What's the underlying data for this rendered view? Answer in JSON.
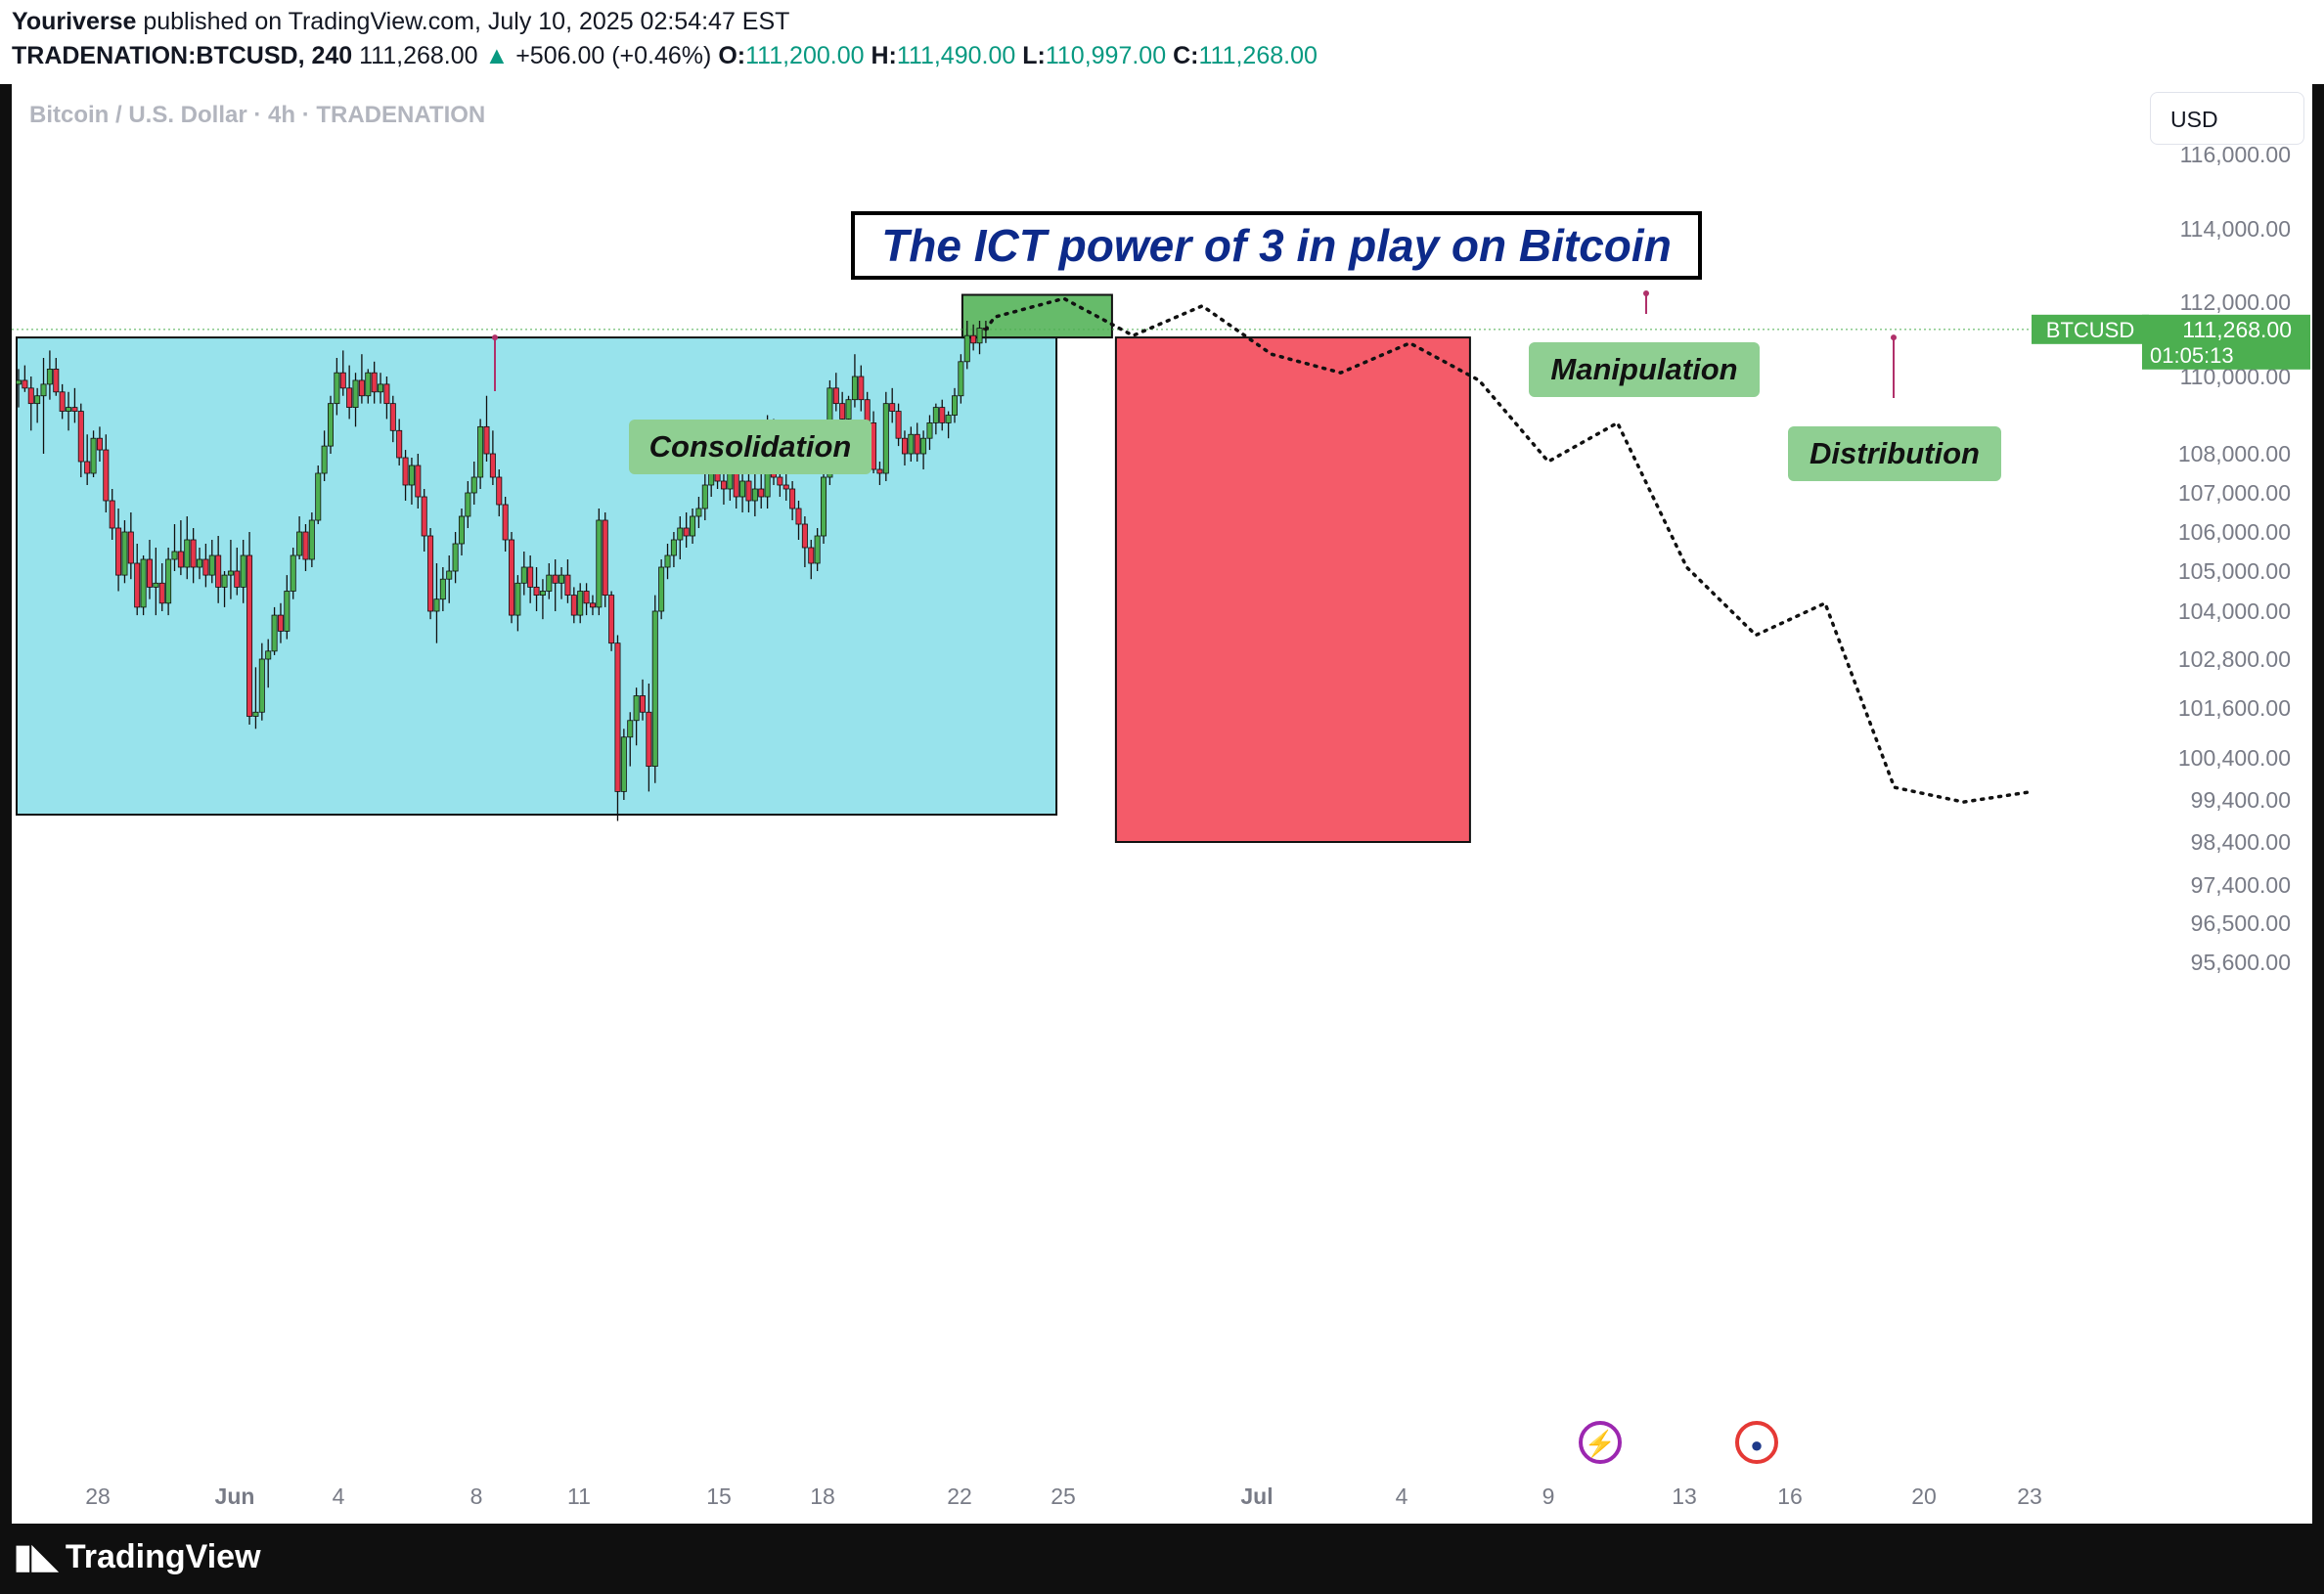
{
  "header": {
    "author": "Youriverse",
    "published_text": " published on TradingView.com, July 10, 2025 02:54:47 EST",
    "symbol": "TRADENATION:BTCUSD, 240",
    "last": "111,268.00",
    "change": "+506.00 (+0.46%)",
    "o_label": "O:",
    "o_value": "111,200.00",
    "h_label": "H:",
    "h_value": "111,490.00",
    "l_label": "L:",
    "l_value": "110,997.00",
    "c_label": "C:",
    "c_value": "111,268.00"
  },
  "chart_header": {
    "symbol_desc": "Bitcoin / U.S. Dollar · 4h · TRADENATION",
    "currency_button": "USD"
  },
  "annotations": {
    "title": "The ICT power of 3 in play on Bitcoin",
    "consolidation": "Consolidation",
    "manipulation": "Manipulation",
    "distribution": "Distribution"
  },
  "price_tag": {
    "symbol": "BTCUSD",
    "price": "111,268.00",
    "countdown": "01:05:13"
  },
  "footer": {
    "brand": "TradingView"
  },
  "colors": {
    "up": "#4caf50",
    "down": "#e5364b",
    "consolidation_box": "#98e3ec",
    "manipulation_box": "#66bb6a",
    "distribution_box": "#f45b69",
    "title_text": "#0d2a8a"
  },
  "chart_data": {
    "type": "candlestick",
    "y_axis_labels": [
      "116,000.00",
      "114,000.00",
      "112,000.00",
      "110,000.00",
      "108,000.00",
      "107,000.00",
      "106,000.00",
      "105,000.00",
      "104,000.00",
      "102,800.00",
      "101,600.00",
      "100,400.00",
      "99,400.00",
      "98,400.00",
      "97,400.00",
      "96,500.00",
      "95,600.00"
    ],
    "x_axis_labels": [
      "28",
      "Jun",
      "4",
      "8",
      "11",
      "15",
      "18",
      "22",
      "25",
      "Jul",
      "4",
      "9",
      "13",
      "16",
      "20",
      "23"
    ],
    "candles": [
      [
        109800,
        110200,
        109200,
        109900
      ],
      [
        109900,
        110300,
        109600,
        109700
      ],
      [
        109700,
        110000,
        108600,
        109300
      ],
      [
        109300,
        109700,
        108800,
        109500
      ],
      [
        109500,
        110500,
        108000,
        109800
      ],
      [
        109800,
        110700,
        109400,
        110200
      ],
      [
        110200,
        110500,
        109500,
        109600
      ],
      [
        109600,
        109800,
        108900,
        109100
      ],
      [
        109100,
        109600,
        108600,
        109200
      ],
      [
        109200,
        109700,
        108800,
        109100
      ],
      [
        109100,
        109300,
        107400,
        107800
      ],
      [
        107800,
        108500,
        107200,
        107500
      ],
      [
        107500,
        108600,
        107400,
        108400
      ],
      [
        108400,
        108700,
        107800,
        108100
      ],
      [
        108100,
        108500,
        106500,
        106800
      ],
      [
        106800,
        107100,
        105800,
        106100
      ],
      [
        106100,
        106600,
        104500,
        104900
      ],
      [
        104900,
        106300,
        104700,
        106000
      ],
      [
        106000,
        106500,
        104800,
        105200
      ],
      [
        105200,
        105700,
        103900,
        104100
      ],
      [
        104100,
        105400,
        103900,
        105300
      ],
      [
        105300,
        105800,
        104300,
        104600
      ],
      [
        104600,
        105600,
        103900,
        104700
      ],
      [
        104700,
        105200,
        104000,
        104200
      ],
      [
        104200,
        105600,
        103900,
        105300
      ],
      [
        105300,
        106200,
        105000,
        105500
      ],
      [
        105500,
        106300,
        104900,
        105100
      ],
      [
        105100,
        106400,
        104800,
        105800
      ],
      [
        105800,
        106100,
        104700,
        105100
      ],
      [
        105100,
        105600,
        104800,
        105300
      ],
      [
        105300,
        105700,
        104600,
        104900
      ],
      [
        104900,
        105800,
        104700,
        105400
      ],
      [
        105400,
        105900,
        104200,
        104600
      ],
      [
        104600,
        105000,
        104100,
        104900
      ],
      [
        104900,
        105800,
        104300,
        105000
      ],
      [
        105000,
        105600,
        104400,
        104600
      ],
      [
        104600,
        105800,
        104200,
        105400
      ],
      [
        105400,
        106000,
        101200,
        101400
      ],
      [
        101400,
        102600,
        101100,
        101500
      ],
      [
        101500,
        103200,
        101300,
        102800
      ],
      [
        102800,
        103300,
        102100,
        103000
      ],
      [
        103000,
        104100,
        102900,
        103900
      ],
      [
        103900,
        104200,
        103200,
        103500
      ],
      [
        103500,
        104900,
        103300,
        104500
      ],
      [
        104500,
        105600,
        104300,
        105400
      ],
      [
        105400,
        106400,
        105300,
        106000
      ],
      [
        106000,
        106200,
        105000,
        105300
      ],
      [
        105300,
        106500,
        105100,
        106300
      ],
      [
        106300,
        107700,
        106200,
        107500
      ],
      [
        107500,
        108600,
        107300,
        108200
      ],
      [
        108200,
        109500,
        108000,
        109300
      ],
      [
        109300,
        110500,
        109000,
        110100
      ],
      [
        110100,
        110700,
        109500,
        109700
      ],
      [
        109700,
        110300,
        108900,
        109200
      ],
      [
        109200,
        110100,
        108700,
        109900
      ],
      [
        109900,
        110600,
        109300,
        109500
      ],
      [
        109500,
        110200,
        109300,
        110100
      ],
      [
        110100,
        110400,
        109300,
        109600
      ],
      [
        109600,
        110100,
        109300,
        109800
      ],
      [
        109800,
        110000,
        108900,
        109300
      ],
      [
        109300,
        109500,
        108300,
        108600
      ],
      [
        108600,
        108900,
        107700,
        107900
      ],
      [
        107900,
        108100,
        106800,
        107200
      ],
      [
        107200,
        107900,
        106700,
        107700
      ],
      [
        107700,
        108000,
        106600,
        106900
      ],
      [
        106900,
        107100,
        105500,
        105900
      ],
      [
        105900,
        106100,
        103800,
        104000
      ],
      [
        104000,
        105200,
        103200,
        104300
      ],
      [
        104300,
        105100,
        104000,
        104800
      ],
      [
        104800,
        105400,
        104200,
        105000
      ],
      [
        105000,
        106000,
        104700,
        105700
      ],
      [
        105700,
        106600,
        105400,
        106400
      ],
      [
        106400,
        107300,
        106100,
        107000
      ],
      [
        107000,
        107800,
        106700,
        107400
      ],
      [
        107400,
        108900,
        107100,
        108700
      ],
      [
        108700,
        109500,
        107800,
        108000
      ],
      [
        108000,
        108600,
        107200,
        107400
      ],
      [
        107400,
        107600,
        106400,
        106700
      ],
      [
        106700,
        106900,
        105500,
        105800
      ],
      [
        105800,
        106000,
        103700,
        103900
      ],
      [
        103900,
        104900,
        103500,
        104700
      ],
      [
        104700,
        105500,
        104400,
        105100
      ],
      [
        105100,
        105400,
        104200,
        104600
      ],
      [
        104600,
        105100,
        104000,
        104400
      ],
      [
        104400,
        104800,
        103800,
        104500
      ],
      [
        104500,
        105200,
        104300,
        104900
      ],
      [
        104900,
        105300,
        104000,
        104700
      ],
      [
        104700,
        105100,
        104300,
        104900
      ],
      [
        104900,
        105300,
        104200,
        104400
      ],
      [
        104400,
        104600,
        103700,
        103900
      ],
      [
        103900,
        104700,
        103700,
        104500
      ],
      [
        104500,
        104700,
        103900,
        104200
      ],
      [
        104200,
        104400,
        103900,
        104100
      ],
      [
        104100,
        106600,
        103900,
        106300
      ],
      [
        106300,
        106500,
        104100,
        104400
      ],
      [
        104400,
        104500,
        103000,
        103200
      ],
      [
        103200,
        103400,
        98900,
        99600
      ],
      [
        99600,
        101100,
        99400,
        100900
      ],
      [
        100900,
        101500,
        100200,
        101300
      ],
      [
        101300,
        102100,
        100700,
        101900
      ],
      [
        101900,
        102300,
        101300,
        101500
      ],
      [
        101500,
        102200,
        99600,
        100200
      ],
      [
        100200,
        104400,
        99800,
        104000
      ],
      [
        104000,
        105300,
        103800,
        105100
      ],
      [
        105100,
        105700,
        104800,
        105400
      ],
      [
        105400,
        106000,
        105100,
        105800
      ],
      [
        105800,
        106400,
        105300,
        106100
      ],
      [
        106100,
        106500,
        105600,
        105900
      ],
      [
        105900,
        106600,
        105700,
        106400
      ],
      [
        106400,
        106900,
        106100,
        106600
      ],
      [
        106600,
        107500,
        106300,
        107200
      ],
      [
        107200,
        107900,
        106900,
        107500
      ],
      [
        107500,
        108200,
        107100,
        107300
      ],
      [
        107300,
        107800,
        106700,
        107100
      ],
      [
        107100,
        108000,
        106800,
        107600
      ],
      [
        107600,
        108100,
        106600,
        106900
      ],
      [
        106900,
        107900,
        106500,
        107300
      ],
      [
        107300,
        107700,
        106500,
        106800
      ],
      [
        106800,
        107500,
        106400,
        107100
      ],
      [
        107100,
        107700,
        106600,
        106900
      ],
      [
        106900,
        109000,
        106600,
        108700
      ],
      [
        108700,
        108900,
        107200,
        107400
      ],
      [
        107400,
        107700,
        106900,
        107200
      ],
      [
        107200,
        107500,
        106800,
        107100
      ],
      [
        107100,
        107300,
        106300,
        106600
      ],
      [
        106600,
        106800,
        105800,
        106200
      ],
      [
        106200,
        106400,
        105100,
        105600
      ],
      [
        105600,
        105800,
        104800,
        105200
      ],
      [
        105200,
        106100,
        105000,
        105900
      ],
      [
        105900,
        107600,
        105700,
        107400
      ],
      [
        107400,
        109900,
        107200,
        109700
      ],
      [
        109700,
        110100,
        109100,
        109300
      ],
      [
        109300,
        109600,
        108500,
        108900
      ],
      [
        108900,
        109500,
        108700,
        109400
      ],
      [
        109400,
        110600,
        109200,
        110000
      ],
      [
        110000,
        110300,
        109100,
        109400
      ],
      [
        109400,
        109600,
        108500,
        108800
      ],
      [
        108800,
        109100,
        107500,
        107600
      ],
      [
        107600,
        107800,
        107200,
        107500
      ],
      [
        107500,
        109600,
        107300,
        109300
      ],
      [
        109300,
        109700,
        108800,
        109100
      ],
      [
        109100,
        109300,
        108200,
        108400
      ],
      [
        108400,
        108600,
        107700,
        108000
      ],
      [
        108000,
        108700,
        107800,
        108500
      ],
      [
        108500,
        108800,
        107800,
        108000
      ],
      [
        108000,
        108600,
        107600,
        108400
      ],
      [
        108400,
        109000,
        108100,
        108800
      ],
      [
        108800,
        109300,
        108500,
        109200
      ],
      [
        109200,
        109400,
        108600,
        108800
      ],
      [
        108800,
        109100,
        108400,
        109000
      ],
      [
        109000,
        109700,
        108800,
        109500
      ],
      [
        109500,
        110600,
        109300,
        110400
      ],
      [
        110400,
        111500,
        110200,
        111100
      ],
      [
        111100,
        111400,
        110700,
        110900
      ],
      [
        110900,
        111500,
        110600,
        111300
      ],
      [
        111300,
        111500,
        110900,
        111268
      ]
    ],
    "projection": [
      111600,
      112100,
      111100,
      111900,
      110600,
      110100,
      110900,
      109900,
      107800,
      108800,
      105100,
      103400,
      104200,
      99700,
      99350,
      99600
    ],
    "zones": {
      "consolidation": {
        "from_index": 0,
        "to_index": 166,
        "high": 111050,
        "low": 99050
      },
      "manipulation": {
        "high": 112200,
        "low": 111050
      },
      "distribution": {
        "high": 111050,
        "low": 98400
      }
    }
  }
}
